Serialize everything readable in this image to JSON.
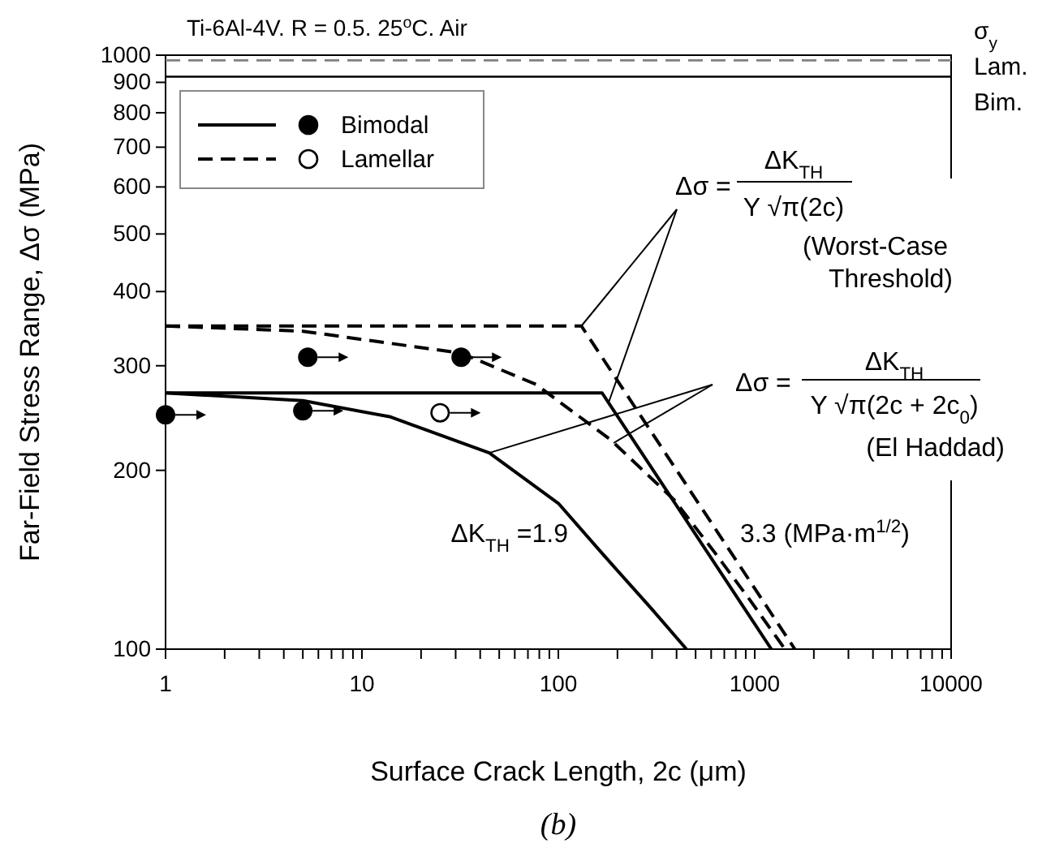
{
  "chart_data": {
    "type": "line",
    "title": "Ti-6Al-4V. R = 0.5. 25$^{o}$C. Air",
    "xlabel": "Surface Crack Length, 2c (μm)",
    "ylabel": "Far-Field Stress Range, Δσ (MPa)",
    "log": "xy",
    "grid": false,
    "legend": "top left",
    "xlim": [
      1,
      10000
    ],
    "ylim": [
      100,
      1000
    ],
    "xticks": [
      1,
      {
        "value": 2,
        "label": null
      },
      {
        "value": 3,
        "label": null
      },
      {
        "value": 4,
        "label": null
      },
      {
        "value": 5,
        "label": null
      },
      {
        "value": 6,
        "label": null
      },
      {
        "value": 7,
        "label": null
      },
      {
        "value": 8,
        "label": null
      },
      {
        "value": 9,
        "label": null
      },
      10,
      {
        "value": 20,
        "label": null
      },
      {
        "value": 30,
        "label": null
      },
      {
        "value": 40,
        "label": null
      },
      {
        "value": 50,
        "label": null
      },
      {
        "value": 60,
        "label": null
      },
      {
        "value": 70,
        "label": null
      },
      {
        "value": 80,
        "label": null
      },
      {
        "value": 90,
        "label": null
      },
      100,
      {
        "value": 200,
        "label": null
      },
      {
        "value": 300,
        "label": null
      },
      {
        "value": 400,
        "label": null
      },
      {
        "value": 500,
        "label": null
      },
      {
        "value": 600,
        "label": null
      },
      {
        "value": 700,
        "label": null
      },
      {
        "value": 800,
        "label": null
      },
      {
        "value": 900,
        "label": null
      },
      1000,
      {
        "value": 2000,
        "label": null
      },
      {
        "value": 3000,
        "label": null
      },
      {
        "value": 4000,
        "label": null
      },
      {
        "value": 5000,
        "label": null
      },
      {
        "value": 6000,
        "label": null
      },
      {
        "value": 7000,
        "label": null
      },
      {
        "value": 8000,
        "label": null
      },
      {
        "value": 9000,
        "label": null
      },
      10000
    ],
    "yticks": [
      100,
      200,
      300,
      400,
      500,
      600,
      700,
      800,
      900,
      1000
    ],
    "ref_lines": [
      {
        "axis": "y",
        "value": 980,
        "label": "Lam.",
        "color": "#808080",
        "line_style": "dashed"
      },
      {
        "axis": "y",
        "value": 920,
        "label": "Bim.",
        "color": "#000000",
        "line_style": "solid"
      }
    ],
    "series": [
      {
        "name": "Bimodal",
        "type": "line",
        "line_style": "solid",
        "color": "#000000",
        "x": [
          1,
          167,
          1215
        ],
        "values": [
          270,
          270,
          100
        ]
      },
      {
        "name": "Lamellar",
        "type": "line",
        "line_style": "dashed",
        "color": "#000000",
        "x": [
          1,
          131,
          1600
        ],
        "values": [
          350,
          350,
          100
        ]
      },
      {
        "type": "line",
        "line_style": "solid",
        "color": "#000000",
        "x": [
          1,
          5,
          14,
          44.5,
          100,
          167,
          298,
          449
        ],
        "values": [
          270,
          262,
          246,
          214,
          176,
          145,
          117,
          100
        ]
      },
      {
        "type": "line",
        "line_style": "dashed",
        "color": "#000000",
        "x": [
          1,
          5,
          32,
          77,
          185,
          391,
          630,
          945,
          1425
        ],
        "values": [
          350,
          343,
          315,
          279,
          225,
          178,
          145,
          121,
          100
        ]
      },
      {
        "type": "scatter",
        "marker": "circle",
        "color": "#000000",
        "x": [
          1,
          5,
          5.3,
          32
        ],
        "values": [
          248,
          252,
          310,
          310
        ]
      },
      {
        "type": "scatter",
        "marker": "circle",
        "color": "#ffffff",
        "x": [
          25
        ],
        "values": [
          250
        ]
      }
    ],
    "annotations": [
      "σ$_{y}$",
      {
        "text": "Δσ =",
        "x": 131,
        "y": 350
      },
      "ΔK$_{TH}$",
      "Y √π(2c)",
      "(Worst-Case",
      "Threshold)",
      {
        "text": "Δσ =",
        "x": 44.5,
        "y": 214
      },
      "ΔK$_{TH}$",
      "Y √π(2c + 2c$_{0}$)",
      "(El Haddad)",
      "ΔK$_{TH}$ =1.9",
      "3.3  (MPa·m$^{1/2}$)",
      "(b)"
    ]
  }
}
